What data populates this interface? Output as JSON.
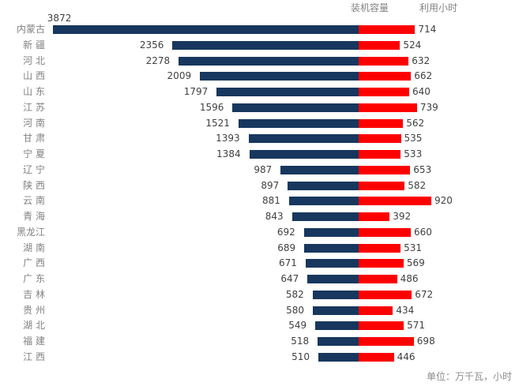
{
  "legend": {
    "capacity": "装机容量",
    "hours": "利用小时"
  },
  "footer": {
    "unit_note": "单位：万千瓦，小时"
  },
  "colors": {
    "background": "#ffffff",
    "capacity_bar": "#17375e",
    "hours_bar": "#fd0000",
    "value_text": "#404040",
    "category_text": "#828282",
    "legend_text": "#828282",
    "footer_text": "#8c8c8c"
  },
  "chart_data": {
    "type": "bar",
    "subtype": "bidirectional-horizontal",
    "title": "",
    "xlabel": "",
    "ylabel": "",
    "unit_note": "单位：万千瓦，小时",
    "gridlines": false,
    "legend_position": "top-right",
    "value_labels": "outside-end",
    "categories": [
      "内蒙古",
      "新 疆",
      "河 北",
      "山 西",
      "山 东",
      "江 苏",
      "河 南",
      "甘 肃",
      "宁 夏",
      "辽 宁",
      "陕 西",
      "云 南",
      "青 海",
      "黑龙江",
      "湖 南",
      "广 西",
      "广 东",
      "吉 林",
      "贵 州",
      "湖 北",
      "福 建",
      "江 西"
    ],
    "series": [
      {
        "name": "装机容量",
        "direction": "left",
        "color": "#17375e",
        "values": [
          3872,
          2356,
          2278,
          2009,
          1797,
          1596,
          1521,
          1393,
          1384,
          987,
          897,
          881,
          843,
          692,
          689,
          671,
          647,
          582,
          580,
          549,
          518,
          510
        ]
      },
      {
        "name": "利用小时",
        "direction": "right",
        "color": "#fd0000",
        "values": [
          714,
          524,
          632,
          662,
          640,
          739,
          562,
          535,
          533,
          653,
          582,
          920,
          392,
          660,
          531,
          569,
          486,
          672,
          434,
          571,
          698,
          446
        ]
      }
    ],
    "value_range_left": [
      0,
      3872
    ],
    "value_range_right": [
      0,
      920
    ]
  }
}
